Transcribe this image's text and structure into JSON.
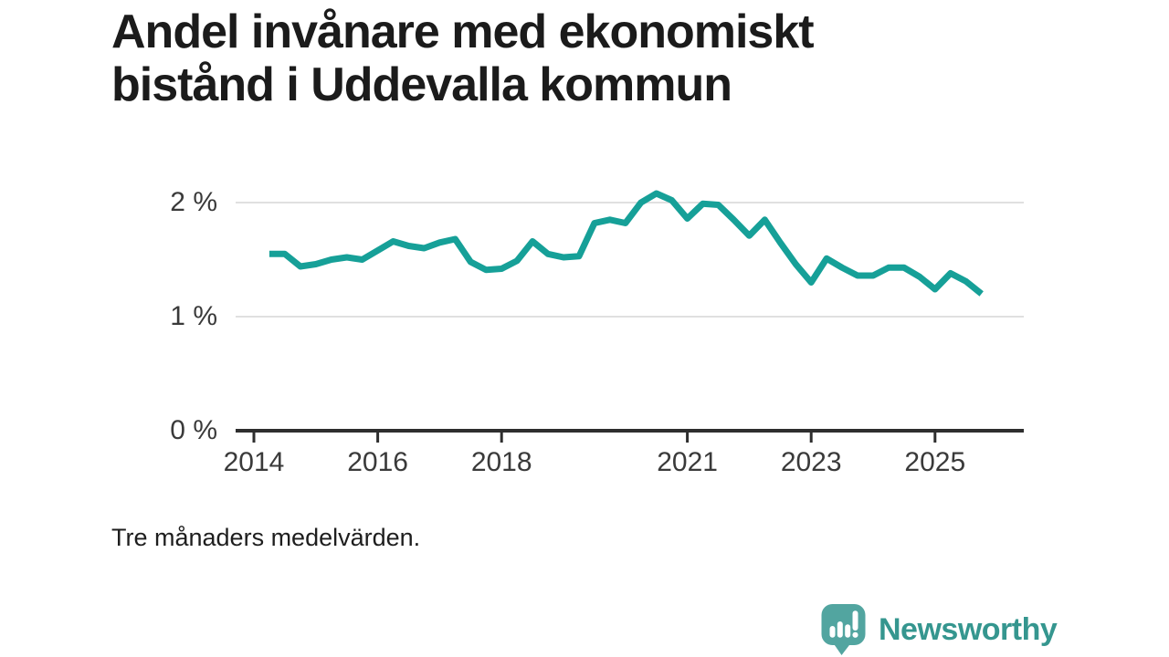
{
  "title": {
    "full": "Andel invånare med ekonomiskt bistånd i Uddevalla kommun",
    "lines": [
      "Andel invånare med ekonomiskt",
      "bistånd i Uddevalla kommun"
    ]
  },
  "footnote": "Tre månaders medelvärden.",
  "logo": {
    "text": "Newsworthy"
  },
  "colors": {
    "line": "#16a098",
    "grid": "#e0e0e0",
    "axis": "#2e2e2e",
    "tick_text": "#3a3a3a",
    "title_text": "#1b1b1b",
    "logo_bubble": "#52a5a0",
    "logo_text": "#35968f"
  },
  "chart_data": {
    "type": "line",
    "title": "Andel invånare med ekonomiskt bistånd i Uddevalla kommun",
    "subtitle": "Tre månaders medelvärden.",
    "xlabel": "",
    "ylabel": "",
    "grid": "horizontal",
    "legend": "none",
    "xlim": [
      2013.7,
      2026.4
    ],
    "ylim": [
      0,
      2.2
    ],
    "y_ticks": [
      {
        "label": "2 %",
        "value": 2
      },
      {
        "label": "1 %",
        "value": 1
      },
      {
        "label": "0 %",
        "value": 0
      }
    ],
    "x_ticks": [
      {
        "label": "2014",
        "year": 2014
      },
      {
        "label": "2016",
        "year": 2016
      },
      {
        "label": "2018",
        "year": 2018
      },
      {
        "label": "2021",
        "year": 2021
      },
      {
        "label": "2023",
        "year": 2023
      },
      {
        "label": "2025",
        "year": 2025
      }
    ],
    "series": [
      {
        "name": "Andel invånare med ekonomiskt bistånd",
        "unit": "%",
        "x": [
          2014.25,
          2014.5,
          2014.75,
          2015.0,
          2015.25,
          2015.5,
          2015.75,
          2016.0,
          2016.25,
          2016.5,
          2016.75,
          2017.0,
          2017.25,
          2017.5,
          2017.75,
          2018.0,
          2018.25,
          2018.5,
          2018.75,
          2019.0,
          2019.25,
          2019.5,
          2019.75,
          2020.0,
          2020.25,
          2020.5,
          2020.75,
          2021.0,
          2021.25,
          2021.5,
          2021.75,
          2022.0,
          2022.25,
          2022.5,
          2022.75,
          2023.0,
          2023.25,
          2023.5,
          2023.75,
          2024.0,
          2024.25,
          2024.5,
          2024.75,
          2025.0,
          2025.25,
          2025.5,
          2025.75
        ],
        "values": [
          1.55,
          1.55,
          1.44,
          1.46,
          1.5,
          1.52,
          1.5,
          1.58,
          1.66,
          1.62,
          1.6,
          1.65,
          1.68,
          1.48,
          1.41,
          1.42,
          1.49,
          1.66,
          1.55,
          1.52,
          1.53,
          1.82,
          1.85,
          1.82,
          2.0,
          2.08,
          2.02,
          1.86,
          1.99,
          1.98,
          1.85,
          1.71,
          1.85,
          1.65,
          1.46,
          1.3,
          1.51,
          1.43,
          1.36,
          1.36,
          1.43,
          1.43,
          1.35,
          1.24,
          1.38,
          1.31,
          1.2
        ]
      }
    ]
  }
}
